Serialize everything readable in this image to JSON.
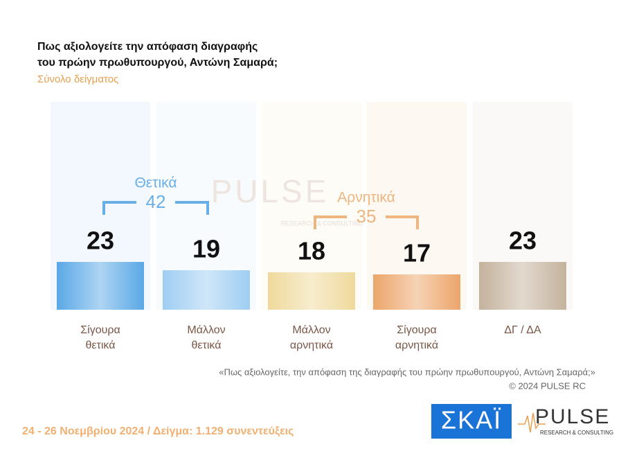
{
  "chart_data": {
    "type": "bar",
    "title": [
      "Πως αξιολογείτε  την απόφαση διαγραφής",
      "του πρώην πρωθυπουργού, Αντώνη Σαμαρά;"
    ],
    "subtitle": "Σύνολο δείγματος",
    "categories": [
      "Σίγουρα θετικά",
      "Μάλλον θετικά",
      "Μάλλον αρνητικά",
      "Σίγουρα αρνητικά",
      "ΔΓ / ΔΑ"
    ],
    "values": [
      23,
      19,
      18,
      17,
      23
    ],
    "colors": [
      "#5aa8e6",
      "#9fcdf2",
      "#efd99c",
      "#eca56a",
      "#c4b29c"
    ],
    "groups": [
      {
        "label": "Θετικά",
        "total": 42,
        "color": "#6aaee6"
      },
      {
        "label": "Αρνητικά",
        "total": 35,
        "color": "#efb57f"
      }
    ]
  },
  "watermark": {
    "name": "PULSE",
    "tagline": "RESEARCH & CONSULTING"
  },
  "note": "«Πως αξιολογείτε, την απόφαση της διαγραφής του πρώην πρωθυπουργού, Αντώνη Σαμαρά;»",
  "copyright": "©  2024  PULSE RC",
  "footer": "24 - 26 Νοεμβρίου 2024  /  Δείγμα:  1.129 συνεντεύξεις",
  "logos": {
    "skai": "ΣΚΑΪ",
    "pulse": "PULSE",
    "pulse_tagline": "RESEARCH & CONSULTING"
  }
}
